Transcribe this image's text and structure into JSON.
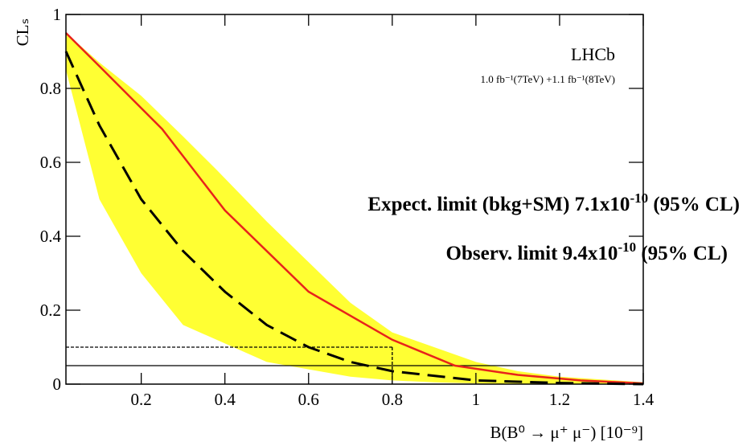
{
  "chart_data": {
    "type": "line",
    "xlabel": "B(B⁰ → μ⁺ μ⁻) [10⁻⁹]",
    "ylabel": "CLₛ",
    "experiment": "LHCb",
    "luminosity": "1.0 fb⁻¹(7TeV) +1.1 fb⁻¹(8TeV)",
    "annotations": [
      {
        "text": "Expect. limit (bkg+SM) 7.1x10",
        "sup": "-10",
        "tail": " (95% CL)"
      },
      {
        "text": "Observ.  limit 9.4x10",
        "sup": "-10",
        "tail": " (95% CL)"
      }
    ],
    "xlim": [
      0.02,
      1.4
    ],
    "ylim": [
      0,
      1
    ],
    "xticks": [
      0.2,
      0.4,
      0.6,
      0.8,
      1,
      1.2,
      1.4
    ],
    "yticks": [
      0,
      0.2,
      0.4,
      0.6,
      0.8,
      1
    ],
    "band": {
      "color": "#ffff33",
      "x": [
        0.02,
        0.1,
        0.2,
        0.3,
        0.38,
        0.5,
        0.7,
        0.8,
        0.9,
        1.0,
        1.1,
        1.2,
        1.4
      ],
      "upper": [
        0.95,
        0.87,
        0.78,
        0.67,
        0.58,
        0.44,
        0.22,
        0.14,
        0.1,
        0.06,
        0.035,
        0.02,
        0.005
      ],
      "lower": [
        0.85,
        0.5,
        0.3,
        0.16,
        0.12,
        0.06,
        0.02,
        0.01,
        0.005,
        0.002,
        0,
        0,
        0
      ]
    },
    "series": [
      {
        "color": "#e8231b",
        "dash": false,
        "x": [
          0.02,
          0.1,
          0.25,
          0.4,
          0.6,
          0.8,
          0.95,
          1.1,
          1.25,
          1.4
        ],
        "values": [
          0.95,
          0.86,
          0.69,
          0.47,
          0.25,
          0.12,
          0.05,
          0.025,
          0.01,
          0.002
        ]
      },
      {
        "color": "#000000",
        "dash": true,
        "x": [
          0.02,
          0.1,
          0.2,
          0.3,
          0.4,
          0.5,
          0.6,
          0.7,
          0.8,
          1.0,
          1.2,
          1.4
        ],
        "values": [
          0.9,
          0.7,
          0.5,
          0.36,
          0.25,
          0.16,
          0.1,
          0.06,
          0.035,
          0.01,
          0.003,
          0
        ]
      }
    ],
    "hlines": [
      {
        "value": 0.1,
        "xmax": 0.8,
        "style": "dotted"
      },
      {
        "value": 0.05,
        "style": "solid"
      }
    ],
    "vlines": [
      {
        "value": 0.8,
        "ymax": 0.1,
        "style": "dotted"
      }
    ]
  }
}
